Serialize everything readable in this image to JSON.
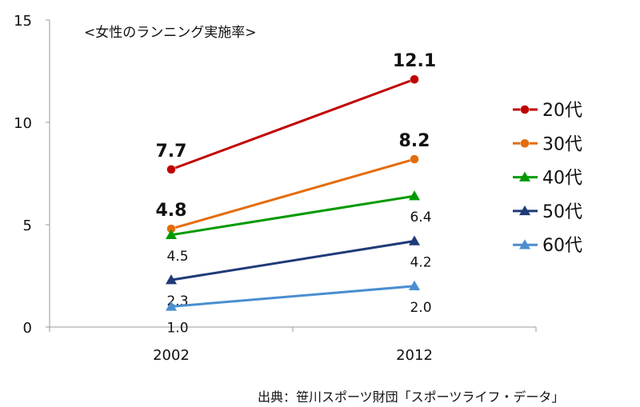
{
  "chart_data": {
    "type": "line",
    "title": "<女性のランニング実施率>",
    "source": "出典：笹川スポーツ財団「スポーツライフ・データ",
    "xlabel": "",
    "ylabel": "",
    "x": [
      "2002",
      "2012"
    ],
    "ylim": [
      0,
      15
    ],
    "yticks": [
      "0",
      "5",
      "10",
      "15"
    ],
    "grid": false,
    "legend_position": "right",
    "series": [
      {
        "name": "20代",
        "values": [
          7.7,
          12.1
        ],
        "labels": [
          "7.7",
          "12.1"
        ],
        "color": "#c00000",
        "marker": "circle",
        "label_pos": [
          "above",
          "above"
        ],
        "label_style": "large"
      },
      {
        "name": "30代",
        "values": [
          4.8,
          8.2
        ],
        "labels": [
          "4.8",
          "8.2"
        ],
        "color": "#e46c0a",
        "marker": "circle",
        "label_pos": [
          "above",
          "above"
        ],
        "label_style": "large"
      },
      {
        "name": "40代",
        "values": [
          4.5,
          6.4
        ],
        "labels": [
          "4.5",
          "6.4"
        ],
        "color": "#009a00",
        "marker": "triangle",
        "label_pos": [
          "below",
          "below"
        ],
        "label_style": "small"
      },
      {
        "name": "50代",
        "values": [
          2.3,
          4.2
        ],
        "labels": [
          "2.3",
          "4.2"
        ],
        "color": "#1f3a78",
        "marker": "triangle",
        "label_pos": [
          "below",
          "below"
        ],
        "label_style": "small"
      },
      {
        "name": "60代",
        "values": [
          1.0,
          2.0
        ],
        "labels": [
          "1.0",
          "2.0"
        ],
        "color": "#4a8ed0",
        "marker": "triangle",
        "label_pos": [
          "below",
          "below"
        ],
        "label_style": "small"
      }
    ]
  }
}
